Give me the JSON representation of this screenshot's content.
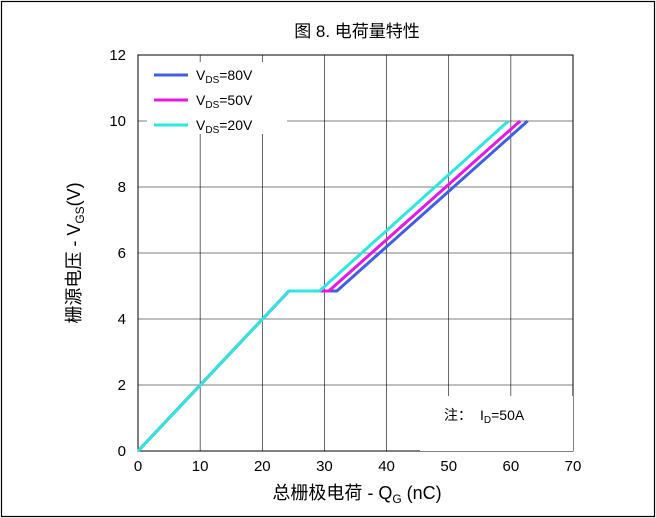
{
  "chart_data": {
    "type": "line",
    "title": "图 8. 电荷量特性",
    "xlabel": {
      "main": "总栅极电荷 - Q",
      "sub": "G",
      "unit": " (nC)"
    },
    "ylabel": {
      "main": "栅源电压 - V",
      "sub": "GS",
      "unit": "(V)"
    },
    "xlim": [
      0,
      70
    ],
    "ylim": [
      0,
      12
    ],
    "x_ticks": [
      0,
      10,
      20,
      30,
      40,
      50,
      60,
      70
    ],
    "y_ticks": [
      0,
      2,
      4,
      6,
      8,
      10,
      12
    ],
    "grid": true,
    "legend_position": "top-left",
    "series": [
      {
        "name": "V_DS=80V",
        "label_main": "V",
        "label_sub": "DS",
        "label_rest": "=80V",
        "color": "#3f5fe6",
        "x": [
          0,
          24.3,
          32,
          62.7
        ],
        "y": [
          0,
          4.85,
          4.85,
          10
        ]
      },
      {
        "name": "V_DS=50V",
        "label_main": "V",
        "label_sub": "DS",
        "label_rest": "=50V",
        "color": "#e616e6",
        "x": [
          0,
          24.3,
          30.7,
          61.5
        ],
        "y": [
          0,
          4.85,
          4.85,
          10
        ]
      },
      {
        "name": "V_DS=20V",
        "label_main": "V",
        "label_sub": "DS",
        "label_rest": "=20V",
        "color": "#2ee6e0",
        "x": [
          0,
          24.3,
          29.2,
          59.6
        ],
        "y": [
          0,
          4.85,
          4.85,
          10
        ]
      }
    ],
    "annotation": {
      "prefix": "注：",
      "main": "I",
      "sub": "D",
      "rest": "=50A"
    }
  }
}
